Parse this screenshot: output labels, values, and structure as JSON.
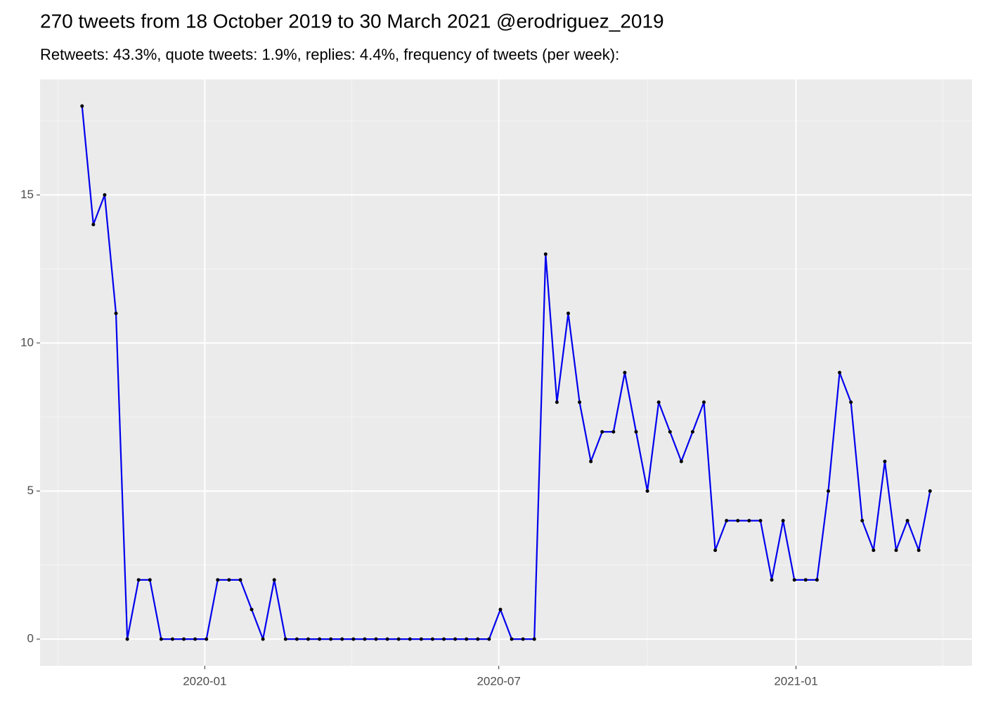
{
  "chart_data": {
    "type": "line",
    "title": "270 tweets from 18 October 2019 to 30 March 2021 @erodriguez_2019",
    "subtitle": "Retweets: 43.3%, quote tweets: 1.9%, replies: 4.4%, frequency of tweets (per week):",
    "x": [
      "2019-10-17",
      "2019-10-24",
      "2019-10-31",
      "2019-11-07",
      "2019-11-14",
      "2019-11-21",
      "2019-11-28",
      "2019-12-05",
      "2019-12-12",
      "2019-12-19",
      "2019-12-26",
      "2020-01-02",
      "2020-01-09",
      "2020-01-16",
      "2020-01-23",
      "2020-01-30",
      "2020-02-06",
      "2020-02-13",
      "2020-02-20",
      "2020-02-27",
      "2020-03-05",
      "2020-03-12",
      "2020-03-19",
      "2020-03-26",
      "2020-04-02",
      "2020-04-09",
      "2020-04-16",
      "2020-04-23",
      "2020-04-30",
      "2020-05-07",
      "2020-05-14",
      "2020-05-21",
      "2020-05-28",
      "2020-06-04",
      "2020-06-11",
      "2020-06-18",
      "2020-06-25",
      "2020-07-02",
      "2020-07-09",
      "2020-07-16",
      "2020-07-23",
      "2020-07-30",
      "2020-08-06",
      "2020-08-13",
      "2020-08-20",
      "2020-08-27",
      "2020-09-03",
      "2020-09-10",
      "2020-09-17",
      "2020-09-24",
      "2020-10-01",
      "2020-10-08",
      "2020-10-15",
      "2020-10-22",
      "2020-10-29",
      "2020-11-05",
      "2020-11-12",
      "2020-11-19",
      "2020-11-26",
      "2020-12-03",
      "2020-12-10",
      "2020-12-17",
      "2020-12-24",
      "2020-12-31",
      "2021-01-07",
      "2021-01-14",
      "2021-01-21",
      "2021-01-28",
      "2021-02-04",
      "2021-02-11",
      "2021-02-18",
      "2021-02-25",
      "2021-03-04",
      "2021-03-11",
      "2021-03-18",
      "2021-03-25"
    ],
    "series": [
      {
        "color": "#0000ee",
        "point_color": "#000000",
        "values": [
          18,
          14,
          15,
          11,
          0,
          2,
          2,
          0,
          0,
          0,
          0,
          0,
          2,
          2,
          2,
          1,
          0,
          2,
          0,
          0,
          0,
          0,
          0,
          0,
          0,
          0,
          0,
          0,
          0,
          0,
          0,
          0,
          0,
          0,
          0,
          0,
          0,
          1,
          0,
          0,
          0,
          13,
          8,
          11,
          8,
          6,
          7,
          7,
          9,
          7,
          5,
          8,
          7,
          6,
          7,
          8,
          3,
          4,
          4,
          4,
          4,
          2,
          4,
          2,
          2,
          2,
          5,
          9,
          8,
          4,
          3,
          6,
          3,
          4,
          3,
          5
        ]
      }
    ],
    "xlim": [
      "2019-09-21",
      "2021-04-20"
    ],
    "xticks": [
      {
        "value": "2020-01-01",
        "label": "2020-01"
      },
      {
        "value": "2020-07-01",
        "label": "2020-07"
      },
      {
        "value": "2021-01-01",
        "label": "2021-01"
      }
    ],
    "ylim": [
      -0.9,
      18.9
    ],
    "yticks": [
      0,
      5,
      10,
      15
    ],
    "grid": true
  }
}
